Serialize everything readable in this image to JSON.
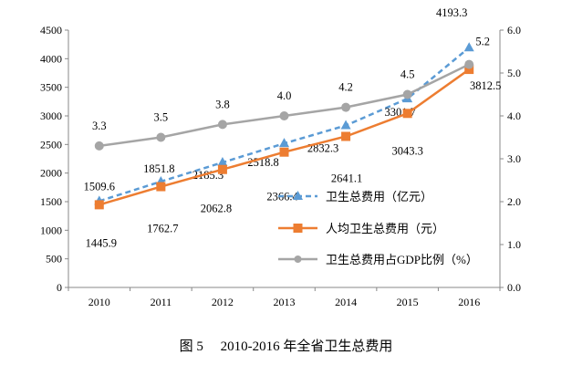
{
  "chart_data": {
    "type": "line",
    "categories": [
      "2010",
      "2011",
      "2012",
      "2013",
      "2014",
      "2015",
      "2016"
    ],
    "y_left": {
      "lim": [
        0,
        4500
      ],
      "ticks": [
        0,
        500,
        1000,
        1500,
        2000,
        2500,
        3000,
        3500,
        4000,
        4500
      ]
    },
    "y_right": {
      "lim": [
        0.0,
        6.0
      ],
      "ticks": [
        "0.0",
        "1.0",
        "2.0",
        "3.0",
        "4.0",
        "5.0",
        "6.0"
      ]
    },
    "grid": false,
    "legend_position": "center-right",
    "series": [
      {
        "name": "卫生总费用（亿元）",
        "axis": "left",
        "color": "#5B9BD5",
        "style": "dashed",
        "marker": "triangle",
        "values": [
          1509.6,
          1851.8,
          2185.3,
          2518.8,
          2832.3,
          3301.7,
          4193.3
        ],
        "labels": [
          "1509.6",
          "1851.8",
          "2185.3",
          "2518.8",
          "2832.3",
          "3301.7",
          "4193.3"
        ]
      },
      {
        "name": "人均卫生总费用（元）",
        "axis": "left",
        "color": "#ED7D31",
        "style": "solid",
        "marker": "square",
        "values": [
          1445.9,
          1762.7,
          2062.8,
          2366.4,
          2641.1,
          3043.3,
          3812.5
        ],
        "labels": [
          "1445.9",
          "1762.7",
          "2062.8",
          "2366.4",
          "2641.1",
          "3043.3",
          "3812.5"
        ]
      },
      {
        "name": "卫生总费用占GDP比例（%）",
        "axis": "right",
        "color": "#A5A5A5",
        "style": "solid",
        "marker": "circle",
        "values": [
          3.3,
          3.5,
          3.8,
          4.0,
          4.2,
          4.5,
          5.2
        ],
        "labels": [
          "3.3",
          "3.5",
          "3.8",
          "4.0",
          "4.2",
          "4.5",
          "5.2"
        ]
      }
    ]
  },
  "caption": "图 5　 2010-2016 年全省卫生总费用"
}
